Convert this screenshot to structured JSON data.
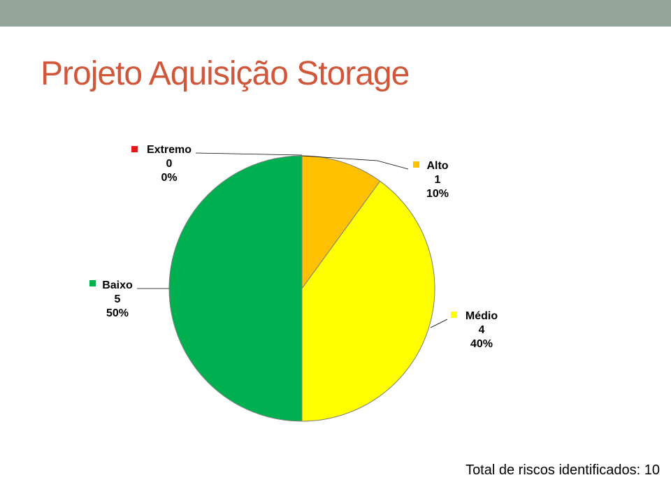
{
  "slide": {
    "title": "Projeto Aquisição Storage",
    "footer": "Total de riscos identificados: 10"
  },
  "colors": {
    "top_bar": "#95a59a",
    "title": "#d0573a",
    "slice_border": "#7f7f7f"
  },
  "chart_data": {
    "type": "pie",
    "title": "",
    "start_angle_deg": 0,
    "direction": "clockwise",
    "slices": [
      {
        "label": "Extremo",
        "value": 0,
        "percent": "0%",
        "color": "#e31a1c"
      },
      {
        "label": "Alto",
        "value": 1,
        "percent": "10%",
        "color": "#ffc000"
      },
      {
        "label": "Médio",
        "value": 4,
        "percent": "40%",
        "color": "#ffff00"
      },
      {
        "label": "Baixo",
        "value": 5,
        "percent": "50%",
        "color": "#00b050"
      }
    ]
  }
}
